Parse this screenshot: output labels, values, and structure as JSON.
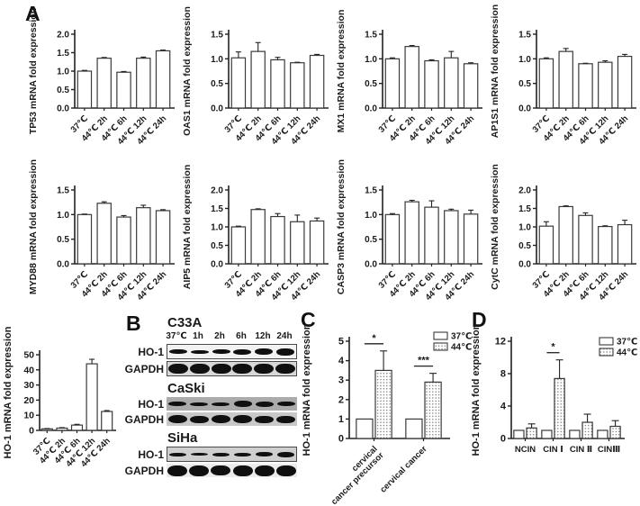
{
  "panels": {
    "a": "A",
    "b": "B",
    "c": "C",
    "d": "D"
  },
  "accent_colors": {
    "bar_fill": "#ffffff",
    "bar_stroke": "#3a3a3a",
    "axis": "#222222",
    "dot_fill": "#6e6e6e"
  },
  "chart_data": [
    {
      "type": "bar",
      "id": "tp53",
      "ylabel": "TP53 mRNA fold expression",
      "categories": [
        "37℃",
        "44℃ 2h",
        "44℃ 6h",
        "44℃ 12h",
        "44℃ 24h"
      ],
      "values": [
        1.0,
        1.35,
        0.97,
        1.35,
        1.55
      ],
      "errors": [
        0.02,
        0.02,
        0.02,
        0.03,
        0.02
      ],
      "ylim": [
        0,
        2
      ],
      "yticks": [
        "0.0",
        "0.5",
        "1.0",
        "1.5",
        "2.0"
      ]
    },
    {
      "type": "bar",
      "id": "oas1",
      "ylabel": "OAS1 mRNA fold expression",
      "categories": [
        "37℃",
        "44℃ 2h",
        "44℃ 6h",
        "44℃ 12h",
        "44℃ 24h"
      ],
      "values": [
        1.02,
        1.15,
        0.98,
        0.92,
        1.07
      ],
      "errors": [
        0.12,
        0.18,
        0.05,
        0.01,
        0.02
      ],
      "ylim": [
        0,
        1.5
      ],
      "yticks": [
        "0.0",
        "0.5",
        "1.0",
        "1.5"
      ]
    },
    {
      "type": "bar",
      "id": "mx1",
      "ylabel": "MX1 mRNA fold expression",
      "categories": [
        "37℃",
        "44℃ 2h",
        "44℃ 6h",
        "44℃ 12h",
        "44℃ 24h"
      ],
      "values": [
        1.0,
        1.25,
        0.96,
        1.02,
        0.9
      ],
      "errors": [
        0.02,
        0.02,
        0.02,
        0.13,
        0.02
      ],
      "ylim": [
        0,
        1.5
      ],
      "yticks": [
        "0.0",
        "0.5",
        "1.0",
        "1.5"
      ]
    },
    {
      "type": "bar",
      "id": "ap1s1",
      "ylabel": "AP1S1 mRNA fold expression",
      "categories": [
        "37℃",
        "44℃ 2h",
        "44℃ 6h",
        "44℃ 12h",
        "44℃ 24h"
      ],
      "values": [
        1.0,
        1.15,
        0.9,
        0.93,
        1.05
      ],
      "errors": [
        0.02,
        0.06,
        0.01,
        0.03,
        0.04
      ],
      "ylim": [
        0,
        1.5
      ],
      "yticks": [
        "0.0",
        "0.5",
        "1.0",
        "1.5"
      ]
    },
    {
      "type": "bar",
      "id": "myd88",
      "ylabel": "MYD88 mRNA fold expression",
      "categories": [
        "37℃",
        "44℃ 2h",
        "44℃ 6h",
        "44℃ 12h",
        "44℃ 24h"
      ],
      "values": [
        1.0,
        1.23,
        0.95,
        1.14,
        1.08
      ],
      "errors": [
        0.01,
        0.03,
        0.03,
        0.05,
        0.02
      ],
      "ylim": [
        0,
        1.5
      ],
      "yticks": [
        "0.0",
        "0.5",
        "1.0",
        "1.5"
      ]
    },
    {
      "type": "bar",
      "id": "aip5",
      "ylabel": "AIP5 mRNA fold expression",
      "categories": [
        "37℃",
        "44℃ 2h",
        "44℃ 6h",
        "44℃ 12h",
        "44℃ 24h"
      ],
      "values": [
        1.0,
        1.47,
        1.28,
        1.14,
        1.16
      ],
      "errors": [
        0.02,
        0.02,
        0.08,
        0.18,
        0.08
      ],
      "ylim": [
        0,
        2
      ],
      "yticks": [
        "0.0",
        "0.5",
        "1.0",
        "1.5",
        "2.0"
      ]
    },
    {
      "type": "bar",
      "id": "casp3",
      "ylabel": "CASP3 mRNA fold expression",
      "categories": [
        "37℃",
        "44℃ 2h",
        "44℃ 6h",
        "44℃ 12h",
        "44℃ 24h"
      ],
      "values": [
        1.0,
        1.26,
        1.15,
        1.08,
        1.01
      ],
      "errors": [
        0.02,
        0.03,
        0.13,
        0.03,
        0.08
      ],
      "ylim": [
        0,
        1.5
      ],
      "yticks": [
        "0.0",
        "0.5",
        "1.0",
        "1.5"
      ]
    },
    {
      "type": "bar",
      "id": "cytc",
      "ylabel": "CytC mRNA fold expression",
      "categories": [
        "37℃",
        "44℃ 2h",
        "44℃ 6h",
        "44℃ 12h",
        "44℃ 24h"
      ],
      "values": [
        1.02,
        1.55,
        1.31,
        1.01,
        1.06
      ],
      "errors": [
        0.12,
        0.02,
        0.07,
        0.02,
        0.12
      ],
      "ylim": [
        0,
        2
      ],
      "yticks": [
        "0.0",
        "0.5",
        "1.0",
        "1.5",
        "2.0"
      ]
    },
    {
      "type": "bar",
      "id": "ho1time",
      "ylabel": "HO-1 mRNA fold expression",
      "categories": [
        "37℃",
        "44℃ 2h",
        "44℃ 6h",
        "44℃ 12h",
        "44℃ 24h"
      ],
      "values": [
        1.0,
        1.5,
        3.5,
        44,
        12.5
      ],
      "errors": [
        0.2,
        0.3,
        0.5,
        3,
        0.6
      ],
      "ylim": [
        0,
        50
      ],
      "yticks": [
        "0",
        "10",
        "20",
        "30",
        "40",
        "50"
      ]
    },
    {
      "type": "grouped_bar",
      "id": "ho1tissue",
      "ylabel": "HO-1 mRNA fold expression",
      "categories": [
        "cervical\ncancer precursor",
        "cervical cancer"
      ],
      "series": [
        {
          "name": "37℃",
          "values": [
            1.0,
            1.0
          ],
          "errors": [
            0,
            0
          ],
          "fill": "white"
        },
        {
          "name": "44℃",
          "values": [
            3.5,
            2.9
          ],
          "errors": [
            1.0,
            0.45
          ],
          "fill": "dots"
        }
      ],
      "ylim": [
        0,
        5
      ],
      "yticks": [
        "0",
        "1",
        "2",
        "3",
        "4",
        "5"
      ],
      "significance": [
        {
          "group": 0,
          "label": "*"
        },
        {
          "group": 1,
          "label": "***"
        }
      ],
      "legend": [
        "37℃",
        "44℃"
      ],
      "legend_position": "top-right"
    },
    {
      "type": "grouped_bar",
      "id": "ho1cin",
      "ylabel": "HO-1 mRNA fold expression",
      "categories": [
        "NCIN",
        "CIN Ⅰ",
        "CIN Ⅱ",
        "CINⅢ"
      ],
      "series": [
        {
          "name": "37℃",
          "values": [
            1.0,
            1.0,
            1.0,
            1.0
          ],
          "errors": [
            0,
            0,
            0,
            0
          ],
          "fill": "white"
        },
        {
          "name": "44℃",
          "values": [
            1.3,
            7.4,
            2.0,
            1.5
          ],
          "errors": [
            0.5,
            2.3,
            1.0,
            0.7
          ],
          "fill": "dots"
        }
      ],
      "ylim": [
        0,
        12
      ],
      "yticks": [
        "0",
        "4",
        "8",
        "12"
      ],
      "significance": [
        {
          "group": 1,
          "label": "*"
        }
      ],
      "legend": [
        "37℃",
        "44℃"
      ],
      "legend_position": "top-right"
    }
  ],
  "western_blots": {
    "lane_labels": [
      "37℃",
      "1h",
      "2h",
      "6h",
      "12h",
      "24h"
    ],
    "groups": [
      {
        "cell_line": "C33A",
        "rows": [
          {
            "label": "HO-1",
            "bg": "#f2f2f2",
            "border": true,
            "band_width": 20,
            "band_heights": [
              5,
              4,
              5,
              6,
              7,
              8
            ]
          },
          {
            "label": "GAPDH",
            "bg": "#d8d8d8",
            "border": true,
            "band_width": 22,
            "band_heights": [
              11,
              11,
              11,
              11,
              11,
              11
            ]
          }
        ]
      },
      {
        "cell_line": "CaSki",
        "rows": [
          {
            "label": "HO-1",
            "bg": "#ababab",
            "border": false,
            "band_width": 20,
            "band_heights": [
              5,
              4,
              4,
              7,
              6,
              5
            ]
          },
          {
            "label": "GAPDH",
            "bg": "#c8c8c8",
            "border": false,
            "band_width": 21,
            "band_heights": [
              9,
              8,
              9,
              9,
              8,
              8
            ]
          }
        ]
      },
      {
        "cell_line": "SiHa",
        "rows": [
          {
            "label": "HO-1",
            "bg": "#cfcfcf",
            "border": true,
            "band_width": 19,
            "band_heights": [
              4,
              3,
              4,
              4,
              5,
              6
            ]
          },
          {
            "label": "GAPDH",
            "bg": "#ececec",
            "border": false,
            "band_width": 22,
            "band_heights": [
              12,
              12,
              11,
              12,
              12,
              12
            ]
          }
        ]
      }
    ]
  }
}
